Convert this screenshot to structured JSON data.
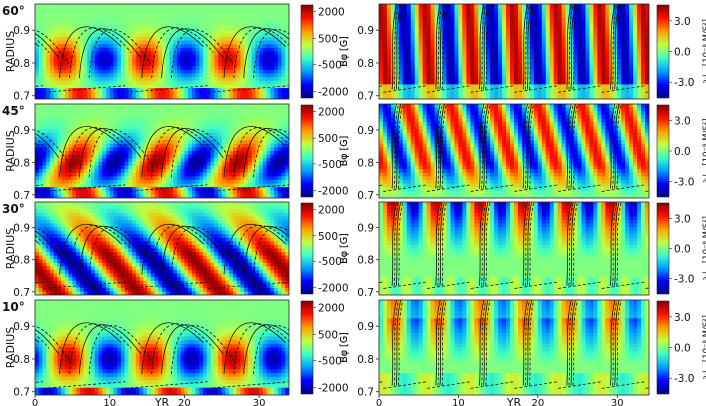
{
  "chart_data": {
    "type": "heatmap",
    "left_panels": [
      {
        "latitude_label": "60°",
        "ylabel": "RADIUS",
        "ylim": [
          0.69,
          0.98
        ],
        "yticks": [
          "0.9",
          "0.8",
          "0.7"
        ],
        "xlim": [
          0,
          34
        ],
        "cbar_label": "Bφ [G]",
        "cbar_ticks": [
          "2000",
          "500",
          "-500",
          "-2000"
        ]
      },
      {
        "latitude_label": "45°",
        "ylabel": "RADIUS",
        "ylim": [
          0.69,
          0.98
        ],
        "yticks": [
          "0.9",
          "0.8",
          "0.7"
        ],
        "xlim": [
          0,
          34
        ],
        "cbar_label": "Bφ [G]",
        "cbar_ticks": [
          "2000",
          "500",
          "-500",
          "-2000"
        ]
      },
      {
        "latitude_label": "30°",
        "ylabel": "RADIUS",
        "ylim": [
          0.69,
          0.98
        ],
        "yticks": [
          "0.9",
          "0.8",
          "0.7"
        ],
        "xlim": [
          0,
          34
        ],
        "cbar_label": "Bφ [G]",
        "cbar_ticks": [
          "2000",
          "500",
          "-500",
          "-2000"
        ]
      },
      {
        "latitude_label": "10°",
        "ylabel": "RADIUS",
        "ylim": [
          0.69,
          0.98
        ],
        "yticks": [
          "0.9",
          "0.8",
          "0.7"
        ],
        "xlim": [
          0,
          34
        ],
        "cbar_label": "Bφ [G]",
        "cbar_ticks": [
          "2000",
          "500",
          "-500",
          "-2000"
        ]
      }
    ],
    "right_panels": [
      {
        "ylabel": "Bφ [G]",
        "ylim": [
          0.69,
          0.98
        ],
        "yticks": [
          "0.9",
          "0.8",
          "0.7"
        ],
        "xlim": [
          0,
          34
        ],
        "cbar_label": "∂ₜLᵩ [10⁻⁸ M/S²]",
        "cbar_ticks": [
          "3.0",
          "0.0",
          "-3.0"
        ]
      },
      {
        "ylabel": "Bφ [G]",
        "ylim": [
          0.69,
          0.98
        ],
        "yticks": [
          "0.9",
          "0.8",
          "0.7"
        ],
        "xlim": [
          0,
          34
        ],
        "cbar_label": "∂ₜLᵩ [10⁻⁸ M/S²]",
        "cbar_ticks": [
          "3.0",
          "0.0",
          "-3.0"
        ]
      },
      {
        "ylabel": "Bφ [G]",
        "ylim": [
          0.69,
          0.98
        ],
        "yticks": [
          "0.9",
          "0.8",
          "0.7"
        ],
        "xlim": [
          0,
          34
        ],
        "cbar_label": "∂ₜLᵩ [10⁻⁸ M/S²]",
        "cbar_ticks": [
          "3.0",
          "0.0",
          "-3.0"
        ]
      },
      {
        "ylabel": "Bφ [G]",
        "ylim": [
          0.69,
          0.98
        ],
        "yticks": [
          "0.9",
          "0.8",
          "0.7"
        ],
        "xlim": [
          0,
          34
        ],
        "cbar_label": "∂ₜLᵩ [10⁻⁸ M/S²]",
        "cbar_ticks": [
          "3.0",
          "0.0",
          "-3.0"
        ]
      }
    ],
    "xlabel": "YR",
    "xticks": [
      "0",
      "10",
      "20",
      "30"
    ],
    "cycle_period_yr": 11,
    "colormap": [
      "#00007f",
      "#0000ff",
      "#00a0ff",
      "#40ffc0",
      "#c0ff40",
      "#ffa000",
      "#ff1000",
      "#800000"
    ]
  }
}
